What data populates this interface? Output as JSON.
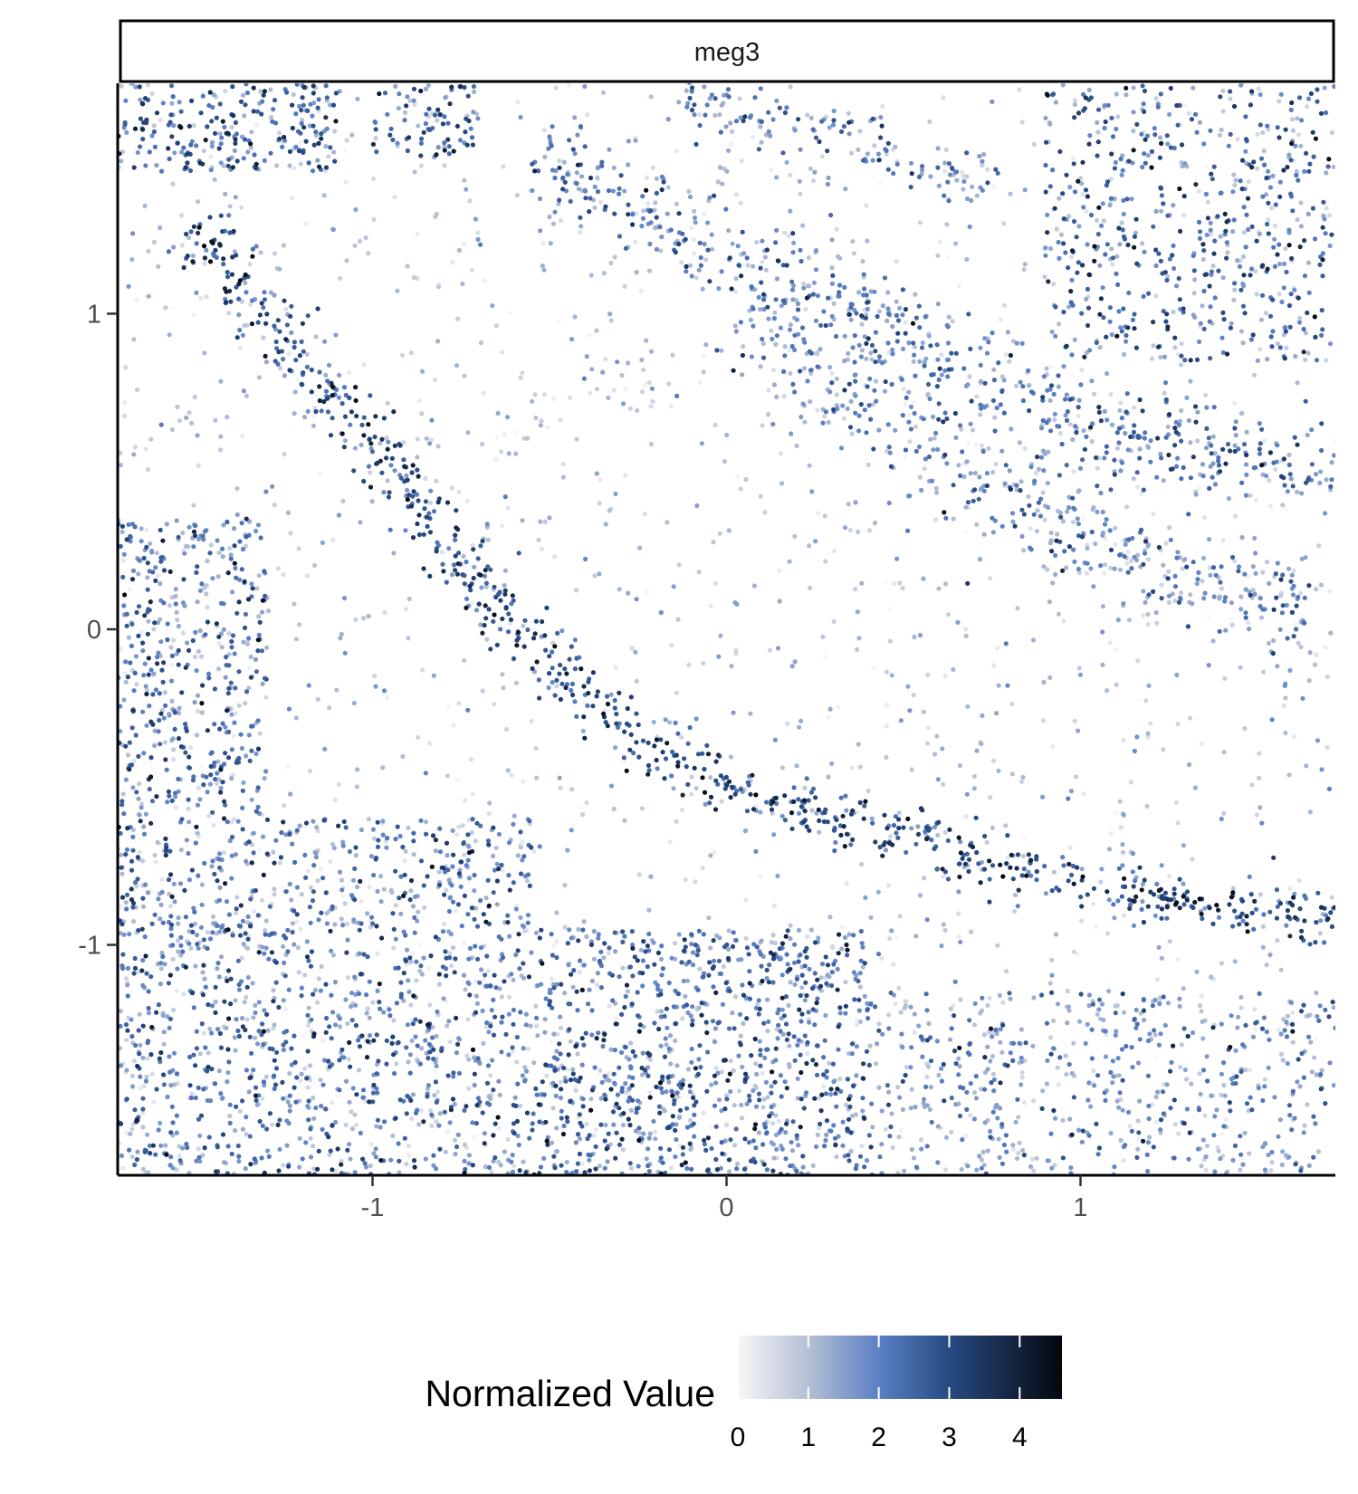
{
  "chart_data": {
    "type": "scatter",
    "facet_label": "meg3",
    "xlim": [
      -1.72,
      1.72
    ],
    "ylim": [
      -1.73,
      1.73
    ],
    "x_ticks": [
      -1,
      0,
      1
    ],
    "x_tick_labels": [
      "-1",
      "0",
      "1"
    ],
    "y_ticks": [
      1,
      0,
      -1
    ],
    "y_tick_labels": [
      "1",
      "0",
      "-1"
    ],
    "grid": false,
    "legend": {
      "title": "Normalized Value",
      "position": "bottom",
      "range": [
        0,
        4.6
      ],
      "ticks": [
        0,
        1,
        2,
        3,
        4
      ],
      "tick_labels": [
        "0",
        "1",
        "2",
        "3",
        "4"
      ],
      "color_stops": [
        {
          "value": 0,
          "color": "#f7f7f7"
        },
        {
          "value": 1,
          "color": "#b4bfd4"
        },
        {
          "value": 2,
          "color": "#5b80c4"
        },
        {
          "value": 3,
          "color": "#274a82"
        },
        {
          "value": 4.6,
          "color": "#05070d"
        }
      ]
    },
    "structures": [
      {
        "kind": "band",
        "path": [
          [
            -1.5,
            1.28
          ],
          [
            -1.3,
            1.0
          ],
          [
            -1.1,
            0.72
          ],
          [
            -0.9,
            0.45
          ],
          [
            -0.72,
            0.15
          ],
          [
            -0.55,
            -0.05
          ],
          [
            -0.35,
            -0.25
          ],
          [
            -0.1,
            -0.45
          ],
          [
            0.25,
            -0.6
          ],
          [
            0.6,
            -0.7
          ],
          [
            1.0,
            -0.8
          ],
          [
            1.4,
            -0.88
          ],
          [
            1.72,
            -0.9
          ]
        ],
        "spread": 0.045,
        "count": 800,
        "value_mean": 2.9,
        "value_sd": 0.8
      },
      {
        "kind": "band",
        "path": [
          [
            -0.55,
            1.48
          ],
          [
            -0.3,
            1.38
          ],
          [
            0.0,
            1.2
          ],
          [
            0.3,
            1.05
          ],
          [
            0.6,
            0.85
          ],
          [
            0.85,
            0.7
          ],
          [
            1.1,
            0.62
          ],
          [
            1.4,
            0.57
          ],
          [
            1.72,
            0.52
          ]
        ],
        "spread": 0.07,
        "count": 600,
        "value_mean": 2.1,
        "value_sd": 0.8
      },
      {
        "kind": "band",
        "path": [
          [
            0.05,
            1.0
          ],
          [
            0.35,
            0.72
          ],
          [
            0.65,
            0.5
          ],
          [
            0.9,
            0.35
          ],
          [
            1.15,
            0.2
          ],
          [
            1.4,
            0.12
          ],
          [
            1.65,
            0.05
          ]
        ],
        "spread": 0.08,
        "count": 450,
        "value_mean": 1.8,
        "value_sd": 0.8
      },
      {
        "kind": "band",
        "path": [
          [
            -0.15,
            1.68
          ],
          [
            0.2,
            1.6
          ],
          [
            0.55,
            1.48
          ],
          [
            0.75,
            1.4
          ]
        ],
        "spread": 0.05,
        "count": 140,
        "value_mean": 2.0,
        "value_sd": 0.8
      },
      {
        "kind": "region",
        "xlim": [
          -1.72,
          -1.3
        ],
        "ylim": [
          -1.73,
          0.35
        ],
        "count": 900,
        "value_mean": 2.1,
        "value_sd": 0.9
      },
      {
        "kind": "region",
        "xlim": [
          -1.3,
          -0.55
        ],
        "ylim": [
          -1.73,
          -0.6
        ],
        "count": 800,
        "value_mean": 2.0,
        "value_sd": 0.9
      },
      {
        "kind": "region",
        "xlim": [
          -0.55,
          0.4
        ],
        "ylim": [
          -1.73,
          -0.95
        ],
        "count": 950,
        "value_mean": 2.2,
        "value_sd": 0.9
      },
      {
        "kind": "region",
        "xlim": [
          0.4,
          1.72
        ],
        "ylim": [
          -1.73,
          -1.15
        ],
        "count": 500,
        "value_mean": 1.8,
        "value_sd": 0.8
      },
      {
        "kind": "region",
        "xlim": [
          -1.72,
          -1.1
        ],
        "ylim": [
          1.45,
          1.73
        ],
        "count": 220,
        "value_mean": 2.4,
        "value_sd": 0.9
      },
      {
        "kind": "region",
        "xlim": [
          -1.0,
          -0.7
        ],
        "ylim": [
          1.5,
          1.73
        ],
        "count": 80,
        "value_mean": 2.4,
        "value_sd": 0.9
      },
      {
        "kind": "region",
        "xlim": [
          0.9,
          1.72
        ],
        "ylim": [
          0.85,
          1.73
        ],
        "count": 500,
        "value_mean": 2.3,
        "value_sd": 0.9
      },
      {
        "kind": "region",
        "xlim": [
          -1.72,
          1.72
        ],
        "ylim": [
          -1.73,
          1.73
        ],
        "count": 1800,
        "value_mean": 0.9,
        "value_sd": 0.5
      }
    ],
    "point_count_approx": 7740
  }
}
